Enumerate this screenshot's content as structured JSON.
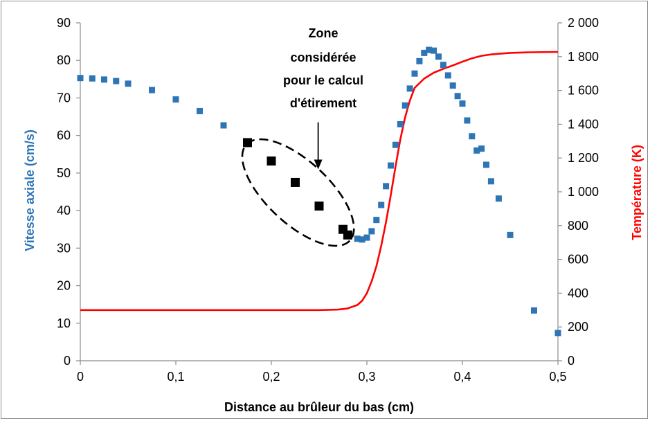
{
  "chart_data": {
    "type": "scatter",
    "title": "",
    "xlabel": "Distance au brûleur du bas (cm)",
    "ylabel_left": "Vitesse axiale (cm/s)",
    "ylabel_right": "Température (K)",
    "xlim": [
      0,
      0.5
    ],
    "ylim_left": [
      0,
      90
    ],
    "ylim_right": [
      0,
      2000
    ],
    "x_ticks": [
      "0",
      "0,1",
      "0,2",
      "0,3",
      "0,4",
      "0,5"
    ],
    "y_left_ticks": [
      "0",
      "10",
      "20",
      "30",
      "40",
      "50",
      "60",
      "70",
      "80",
      "90"
    ],
    "y_right_ticks": [
      "0",
      "200",
      "400",
      "600",
      "800",
      "1 000",
      "1 200",
      "1 400",
      "1 600",
      "1 800",
      "2 000"
    ],
    "grid": false,
    "legend": "none",
    "colors": {
      "velocity": "#2e75b6",
      "temperature": "#ff0000",
      "selected": "#000000",
      "left_axis_label": "#2e75b6",
      "right_axis_label": "#ff0000"
    },
    "series": [
      {
        "role": "velocity",
        "axis": "left",
        "marker": "square",
        "points": [
          [
            0,
            75.3
          ],
          [
            0.0125,
            75.2
          ],
          [
            0.025,
            74.9
          ],
          [
            0.0375,
            74.5
          ],
          [
            0.05,
            73.8
          ],
          [
            0.075,
            72.1
          ],
          [
            0.1,
            69.6
          ],
          [
            0.125,
            66.5
          ],
          [
            0.15,
            62.7
          ],
          [
            0.29,
            32.5
          ],
          [
            0.295,
            32.3
          ],
          [
            0.3,
            32.8
          ],
          [
            0.305,
            34.5
          ],
          [
            0.31,
            37.5
          ],
          [
            0.315,
            41.5
          ],
          [
            0.32,
            46.5
          ],
          [
            0.325,
            52.0
          ],
          [
            0.33,
            57.5
          ],
          [
            0.335,
            63.0
          ],
          [
            0.34,
            68.0
          ],
          [
            0.345,
            72.5
          ],
          [
            0.35,
            76.5
          ],
          [
            0.355,
            79.8
          ],
          [
            0.36,
            82.0
          ],
          [
            0.365,
            82.8
          ],
          [
            0.37,
            82.6
          ],
          [
            0.375,
            81.0
          ],
          [
            0.38,
            78.8
          ],
          [
            0.385,
            76.0
          ],
          [
            0.39,
            73.3
          ],
          [
            0.395,
            70.5
          ],
          [
            0.4,
            68.5
          ],
          [
            0.405,
            64.0
          ],
          [
            0.41,
            59.8
          ],
          [
            0.415,
            56.0
          ],
          [
            0.42,
            56.5
          ],
          [
            0.425,
            52.2
          ],
          [
            0.43,
            47.8
          ],
          [
            0.438,
            43.2
          ],
          [
            0.45,
            33.5
          ],
          [
            0.475,
            13.4
          ],
          [
            0.5,
            7.4
          ]
        ]
      },
      {
        "role": "selected",
        "axis": "left",
        "marker": "square",
        "points": [
          [
            0.175,
            58.1
          ],
          [
            0.2,
            53.2
          ],
          [
            0.225,
            47.5
          ],
          [
            0.25,
            41.2
          ],
          [
            0.275,
            35.0
          ],
          [
            0.28,
            33.5
          ]
        ]
      },
      {
        "role": "temperature",
        "axis": "right",
        "marker": "line",
        "points": [
          [
            0,
            300
          ],
          [
            0.25,
            300
          ],
          [
            0.27,
            303
          ],
          [
            0.28,
            310
          ],
          [
            0.29,
            330
          ],
          [
            0.295,
            355
          ],
          [
            0.3,
            400
          ],
          [
            0.305,
            470
          ],
          [
            0.31,
            560
          ],
          [
            0.315,
            680
          ],
          [
            0.32,
            820
          ],
          [
            0.325,
            980
          ],
          [
            0.33,
            1150
          ],
          [
            0.335,
            1310
          ],
          [
            0.34,
            1440
          ],
          [
            0.345,
            1540
          ],
          [
            0.35,
            1615
          ],
          [
            0.36,
            1670
          ],
          [
            0.37,
            1705
          ],
          [
            0.38,
            1728
          ],
          [
            0.39,
            1748
          ],
          [
            0.4,
            1770
          ],
          [
            0.41,
            1790
          ],
          [
            0.42,
            1805
          ],
          [
            0.43,
            1813
          ],
          [
            0.44,
            1818
          ],
          [
            0.45,
            1822
          ],
          [
            0.47,
            1826
          ],
          [
            0.5,
            1828
          ]
        ]
      }
    ],
    "annotation": {
      "lines": [
        "Zone",
        "considérée",
        "pour le calcul",
        "d'étirement"
      ],
      "ellipse_center": [
        0.228,
        44.8
      ],
      "arrow_from": [
        0.249,
        63.5
      ],
      "arrow_to": [
        0.249,
        51.0
      ]
    }
  }
}
